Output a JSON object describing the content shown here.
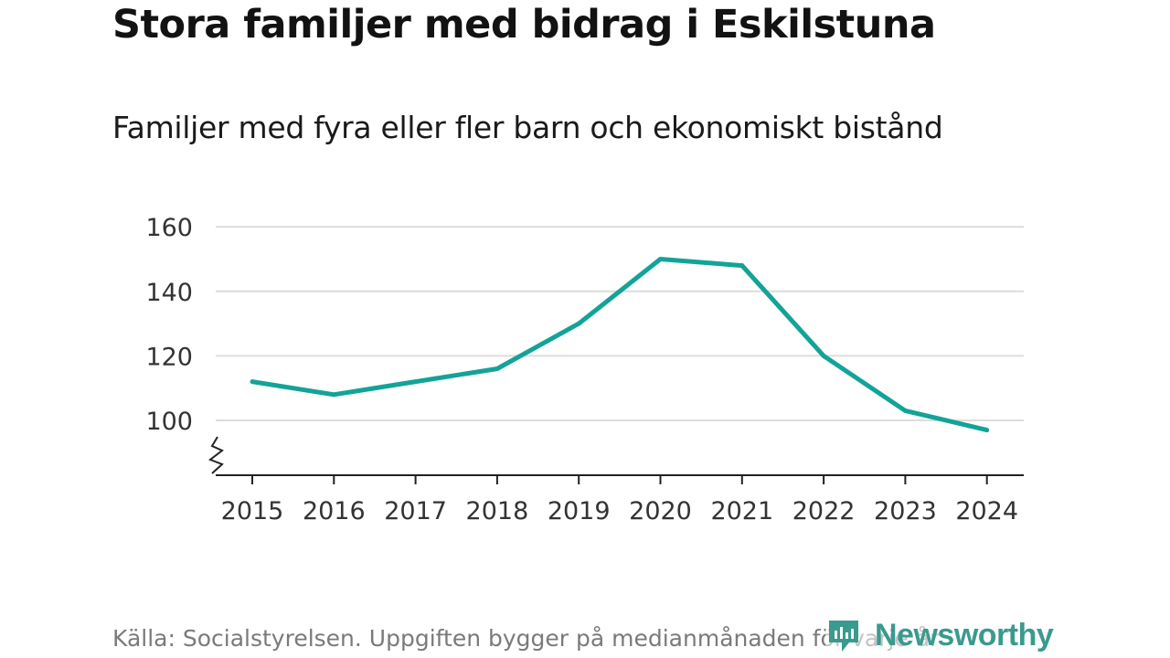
{
  "chart_data": {
    "type": "line",
    "title": "Stora familjer med bidrag i Eskilstuna",
    "subtitle": "Familjer med fyra eller fler barn och ekonomiskt bistånd",
    "x": [
      "2015",
      "2016",
      "2017",
      "2018",
      "2019",
      "2020",
      "2021",
      "2022",
      "2023",
      "2024"
    ],
    "series": [
      {
        "values": [
          112,
          108,
          112,
          116,
          130,
          150,
          148,
          120,
          103,
          97
        ]
      }
    ],
    "yticks": [
      "100",
      "120",
      "140",
      "160"
    ],
    "ylim": [
      83,
      160
    ],
    "y_axis_break": true,
    "grid": true,
    "line_color": "#13a398",
    "grid_color": "#dcdcdc",
    "axis_color": "#222222"
  },
  "footer": {
    "source": "Källa: Socialstyrelsen. Uppgiften bygger på medianmånaden för varje år",
    "brand": "Newsworthy",
    "brand_color": "#3a9a8e",
    "brand_icon": "newsworthy-logo-icon"
  }
}
